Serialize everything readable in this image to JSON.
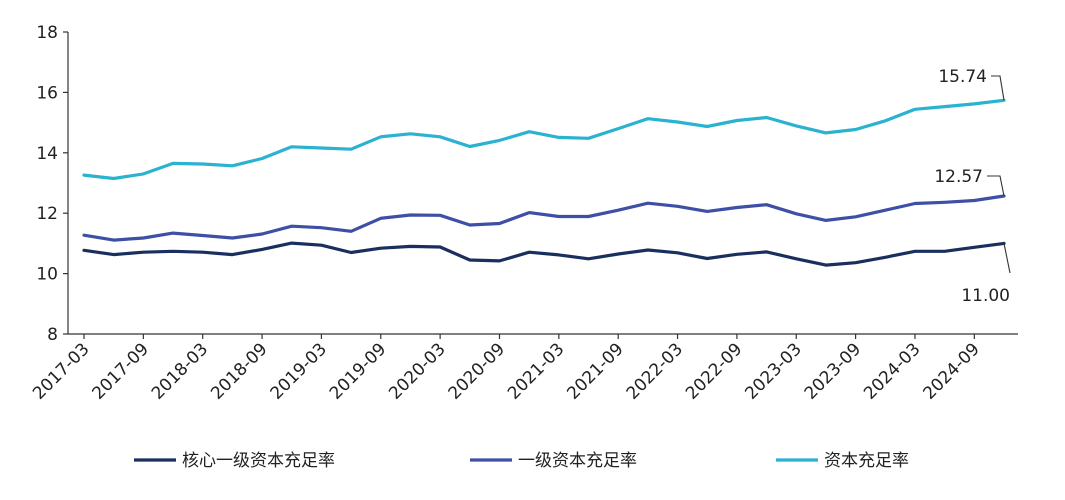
{
  "chart_data": {
    "type": "line",
    "title": "",
    "xlabel": "",
    "ylabel": "",
    "ylim": [
      8,
      18
    ],
    "yticks": [
      8,
      10,
      12,
      14,
      16,
      18
    ],
    "x_tick_labels": [
      "2017-03",
      "2017-09",
      "2018-03",
      "2018-09",
      "2019-03",
      "2019-09",
      "2020-03",
      "2020-09",
      "2021-03",
      "2021-09",
      "2022-03",
      "2022-09",
      "2023-03",
      "2023-09",
      "2024-03",
      "2024-09"
    ],
    "x": [
      "2017-03",
      "2017-06",
      "2017-09",
      "2017-12",
      "2018-03",
      "2018-06",
      "2018-09",
      "2018-12",
      "2019-03",
      "2019-06",
      "2019-09",
      "2019-12",
      "2020-03",
      "2020-06",
      "2020-09",
      "2020-12",
      "2021-03",
      "2021-06",
      "2021-09",
      "2021-12",
      "2022-03",
      "2022-06",
      "2022-09",
      "2022-12",
      "2023-03",
      "2023-06",
      "2023-09",
      "2023-12",
      "2024-03",
      "2024-06",
      "2024-09",
      "2024-12"
    ],
    "series": [
      {
        "name": "核心一级资本充足率",
        "color": "#1b2f5e",
        "values": [
          10.77,
          10.63,
          10.71,
          10.74,
          10.71,
          10.63,
          10.8,
          11.01,
          10.94,
          10.7,
          10.84,
          10.9,
          10.88,
          10.45,
          10.42,
          10.71,
          10.62,
          10.49,
          10.65,
          10.78,
          10.69,
          10.5,
          10.64,
          10.72,
          10.49,
          10.28,
          10.36,
          10.54,
          10.74,
          10.74,
          10.87,
          11.0
        ]
      },
      {
        "name": "一级资本充足率",
        "color": "#3e4fa6",
        "values": [
          11.27,
          11.11,
          11.18,
          11.34,
          11.26,
          11.18,
          11.31,
          11.57,
          11.52,
          11.4,
          11.83,
          11.94,
          11.93,
          11.61,
          11.66,
          12.02,
          11.89,
          11.89,
          12.1,
          12.33,
          12.23,
          12.06,
          12.19,
          12.28,
          11.98,
          11.76,
          11.88,
          12.1,
          12.32,
          12.36,
          12.42,
          12.57
        ]
      },
      {
        "name": "资本充足率",
        "color": "#2ab3d1",
        "values": [
          13.26,
          13.15,
          13.3,
          13.65,
          13.63,
          13.57,
          13.81,
          14.2,
          14.16,
          14.12,
          14.53,
          14.63,
          14.53,
          14.21,
          14.41,
          14.7,
          14.51,
          14.48,
          14.8,
          15.13,
          15.02,
          14.87,
          15.07,
          15.17,
          14.89,
          14.66,
          14.77,
          15.06,
          15.44,
          15.53,
          15.62,
          15.74
        ]
      }
    ],
    "annotations": [
      {
        "series": 2,
        "text": "15.74"
      },
      {
        "series": 1,
        "text": "12.57"
      },
      {
        "series": 0,
        "text": "11.00"
      }
    ],
    "legend_position": "bottom",
    "grid": false
  }
}
